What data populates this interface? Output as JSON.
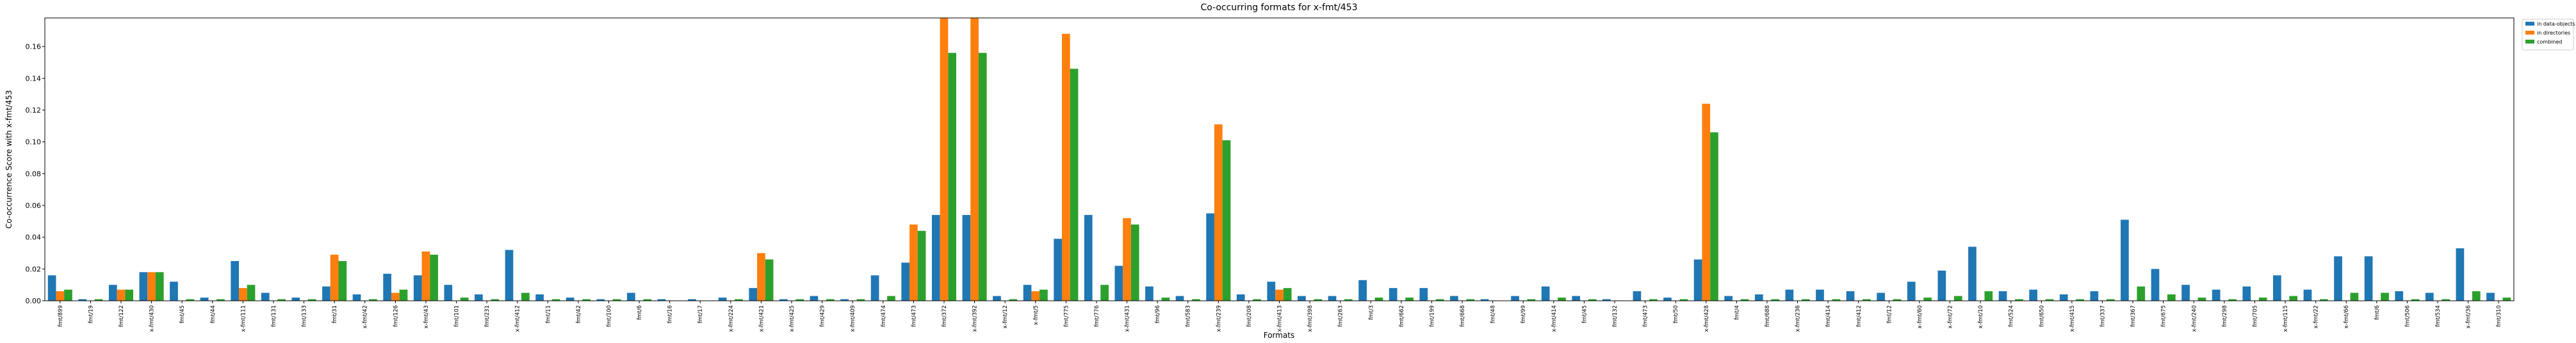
{
  "chart_data": {
    "type": "bar",
    "title": "Co-occurring formats for x-fmt/453",
    "x_label": "Formats",
    "y_label": "Co-occurrence Score with x-fmt/453",
    "categories": [
      "fmt/899",
      "fmt/19",
      "fmt/122",
      "x-fmt/430",
      "fmt/45",
      "fmt/44",
      "x-fmt/111",
      "fmt/131",
      "fmt/133",
      "fmt/31",
      "x-fmt/42",
      "fmt/126",
      "x-fmt/43",
      "fmt/101",
      "fmt/231",
      "x-fmt/412",
      "fmt/11",
      "fmt/42",
      "fmt/100",
      "fmt/6",
      "fmt/16",
      "fmt/17",
      "x-fmt/224",
      "x-fmt/421",
      "x-fmt/425",
      "fmt/429",
      "x-fmt/409",
      "fmt/474",
      "fmt/473",
      "fmt/372",
      "x-fmt/392",
      "x-fmt/12",
      "x-fmt/5",
      "fmt/775",
      "fmt/776",
      "x-fmt/431",
      "fmt/96",
      "fmt/583",
      "x-fmt/239",
      "fmt/208",
      "x-fmt/413",
      "x-fmt/398",
      "fmt/263",
      "fmt/3",
      "fmt/662",
      "fmt/199",
      "fmt/668",
      "fmt/48",
      "fmt/99",
      "x-fmt/414",
      "fmt/45",
      "fmt/132",
      "fmt/473",
      "fmt/50",
      "x-fmt/428",
      "fmt/4",
      "fmt/688",
      "x-fmt/236",
      "fmt/414",
      "fmt/412",
      "fmt/12",
      "x-fmt/60",
      "x-fmt/72",
      "x-fmt/10",
      "fmt/524",
      "fmt/650",
      "x-fmt/415",
      "fmt/337",
      "fmt/367",
      "fmt/675",
      "x-fmt/240",
      "fmt/298",
      "fmt/705",
      "x-fmt/115",
      "x-fmt/22",
      "x-fmt/66",
      "fmt/6",
      "fmt/506",
      "fmt/534",
      "x-fmt/36",
      "fmt/310"
    ],
    "series": [
      {
        "name": "in data-objects",
        "color": "#1f77b4",
        "values": [
          0.016,
          0.001,
          0.01,
          0.018,
          0.012,
          0.002,
          0.025,
          0.005,
          0.002,
          0.009,
          0.004,
          0.017,
          0.016,
          0.01,
          0.004,
          0.032,
          0.004,
          0.002,
          0.001,
          0.005,
          0.001,
          0.001,
          0.002,
          0.008,
          0.001,
          0.003,
          0.001,
          0.016,
          0.024,
          0.054,
          0.054,
          0.003,
          0.01,
          0.039,
          0.054,
          0.022,
          0.009,
          0.003,
          0.055,
          0.004,
          0.012,
          0.003,
          0.003,
          0.013,
          0.008,
          0.008,
          0.003,
          0.001,
          0.003,
          0.009,
          0.003,
          0.001,
          0.006,
          0.002,
          0.026,
          0.003,
          0.004,
          0.007,
          0.007,
          0.006,
          0.005,
          0.012,
          0.019,
          0.034,
          0.006,
          0.007,
          0.004,
          0.006,
          0.051,
          0.02,
          0.01,
          0.007,
          0.009,
          0.016,
          0.007,
          0.028,
          0.028,
          0.006,
          0.005,
          0.033,
          0.005
        ]
      },
      {
        "name": "in directories",
        "color": "#ff7f0e",
        "values": [
          0.006,
          0,
          0.007,
          0.018,
          0,
          0,
          0.008,
          0,
          0,
          0.029,
          0,
          0.005,
          0.031,
          0,
          0,
          0,
          0,
          0,
          0,
          0,
          0,
          0,
          0,
          0.03,
          0,
          0,
          0,
          0,
          0.048,
          0.178,
          0.178,
          0,
          0.006,
          0.168,
          0,
          0.052,
          0,
          0,
          0.111,
          0,
          0.007,
          0,
          0,
          0,
          0,
          0,
          0,
          0,
          0,
          0,
          0,
          0,
          0,
          0,
          0.124,
          0,
          0,
          0,
          0,
          0,
          0,
          0,
          0,
          0,
          0,
          0,
          0,
          0,
          0,
          0,
          0,
          0,
          0,
          0,
          0,
          0,
          0,
          0,
          0,
          0,
          0
        ]
      },
      {
        "name": "combined",
        "color": "#2ca02c",
        "values": [
          0.007,
          0.001,
          0.007,
          0.018,
          0.001,
          0.001,
          0.01,
          0.001,
          0.001,
          0.025,
          0.001,
          0.007,
          0.029,
          0.002,
          0.001,
          0.005,
          0.001,
          0.001,
          0.001,
          0.001,
          0,
          0,
          0.001,
          0.026,
          0.001,
          0.001,
          0.001,
          0.003,
          0.044,
          0.156,
          0.156,
          0.001,
          0.007,
          0.146,
          0.01,
          0.048,
          0.002,
          0.001,
          0.101,
          0.001,
          0.008,
          0.001,
          0.001,
          0.002,
          0.002,
          0.001,
          0.001,
          0,
          0.001,
          0.002,
          0.001,
          0,
          0.001,
          0.001,
          0.106,
          0.001,
          0.001,
          0.001,
          0.001,
          0.001,
          0.001,
          0.002,
          0.003,
          0.006,
          0.001,
          0.001,
          0.001,
          0.001,
          0.009,
          0.004,
          0.002,
          0.001,
          0.002,
          0.003,
          0.001,
          0.005,
          0.005,
          0.001,
          0.001,
          0.006,
          0.002
        ]
      }
    ],
    "ylim": [
      0,
      0.178
    ],
    "yticks": [
      {
        "value": 0,
        "label": "0.00"
      },
      {
        "value": 0.02,
        "label": "0.02"
      },
      {
        "value": 0.04,
        "label": "0.04"
      },
      {
        "value": 0.06,
        "label": "0.06"
      },
      {
        "value": 0.08,
        "label": "0.08"
      },
      {
        "value": 0.1,
        "label": "0.10"
      },
      {
        "value": 0.12,
        "label": "0.12"
      },
      {
        "value": 0.14,
        "label": "0.14"
      },
      {
        "value": 0.16,
        "label": "0.16"
      }
    ],
    "legend": "upper right outside"
  }
}
